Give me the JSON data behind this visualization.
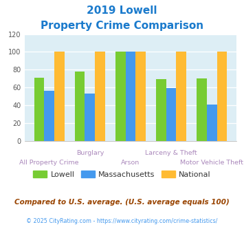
{
  "title_line1": "2019 Lowell",
  "title_line2": "Property Crime Comparison",
  "title_color": "#1a7acc",
  "categories": [
    "All Property Crime",
    "Burglary",
    "Arson",
    "Larceny & Theft",
    "Motor Vehicle Theft"
  ],
  "group_labels_top": [
    "",
    "Burglary",
    "",
    "Larceny & Theft",
    ""
  ],
  "group_labels_bottom": [
    "All Property Crime",
    "",
    "Arson",
    "",
    "Motor Vehicle Theft"
  ],
  "lowell": [
    71,
    78,
    100,
    69,
    70
  ],
  "massachusetts": [
    56,
    53,
    100,
    59,
    41
  ],
  "national": [
    100,
    100,
    100,
    100,
    100
  ],
  "lowell_color": "#77cc33",
  "massachusetts_color": "#4499ee",
  "national_color": "#ffbb33",
  "ylim": [
    0,
    120
  ],
  "yticks": [
    0,
    20,
    40,
    60,
    80,
    100,
    120
  ],
  "plot_bg_color": "#ddeef5",
  "label_color": "#aa88bb",
  "legend_labels": [
    "Lowell",
    "Massachusetts",
    "National"
  ],
  "footnote1": "Compared to U.S. average. (U.S. average equals 100)",
  "footnote2": "© 2025 CityRating.com - https://www.cityrating.com/crime-statistics/",
  "footnote1_color": "#994400",
  "footnote2_color": "#4499ee"
}
